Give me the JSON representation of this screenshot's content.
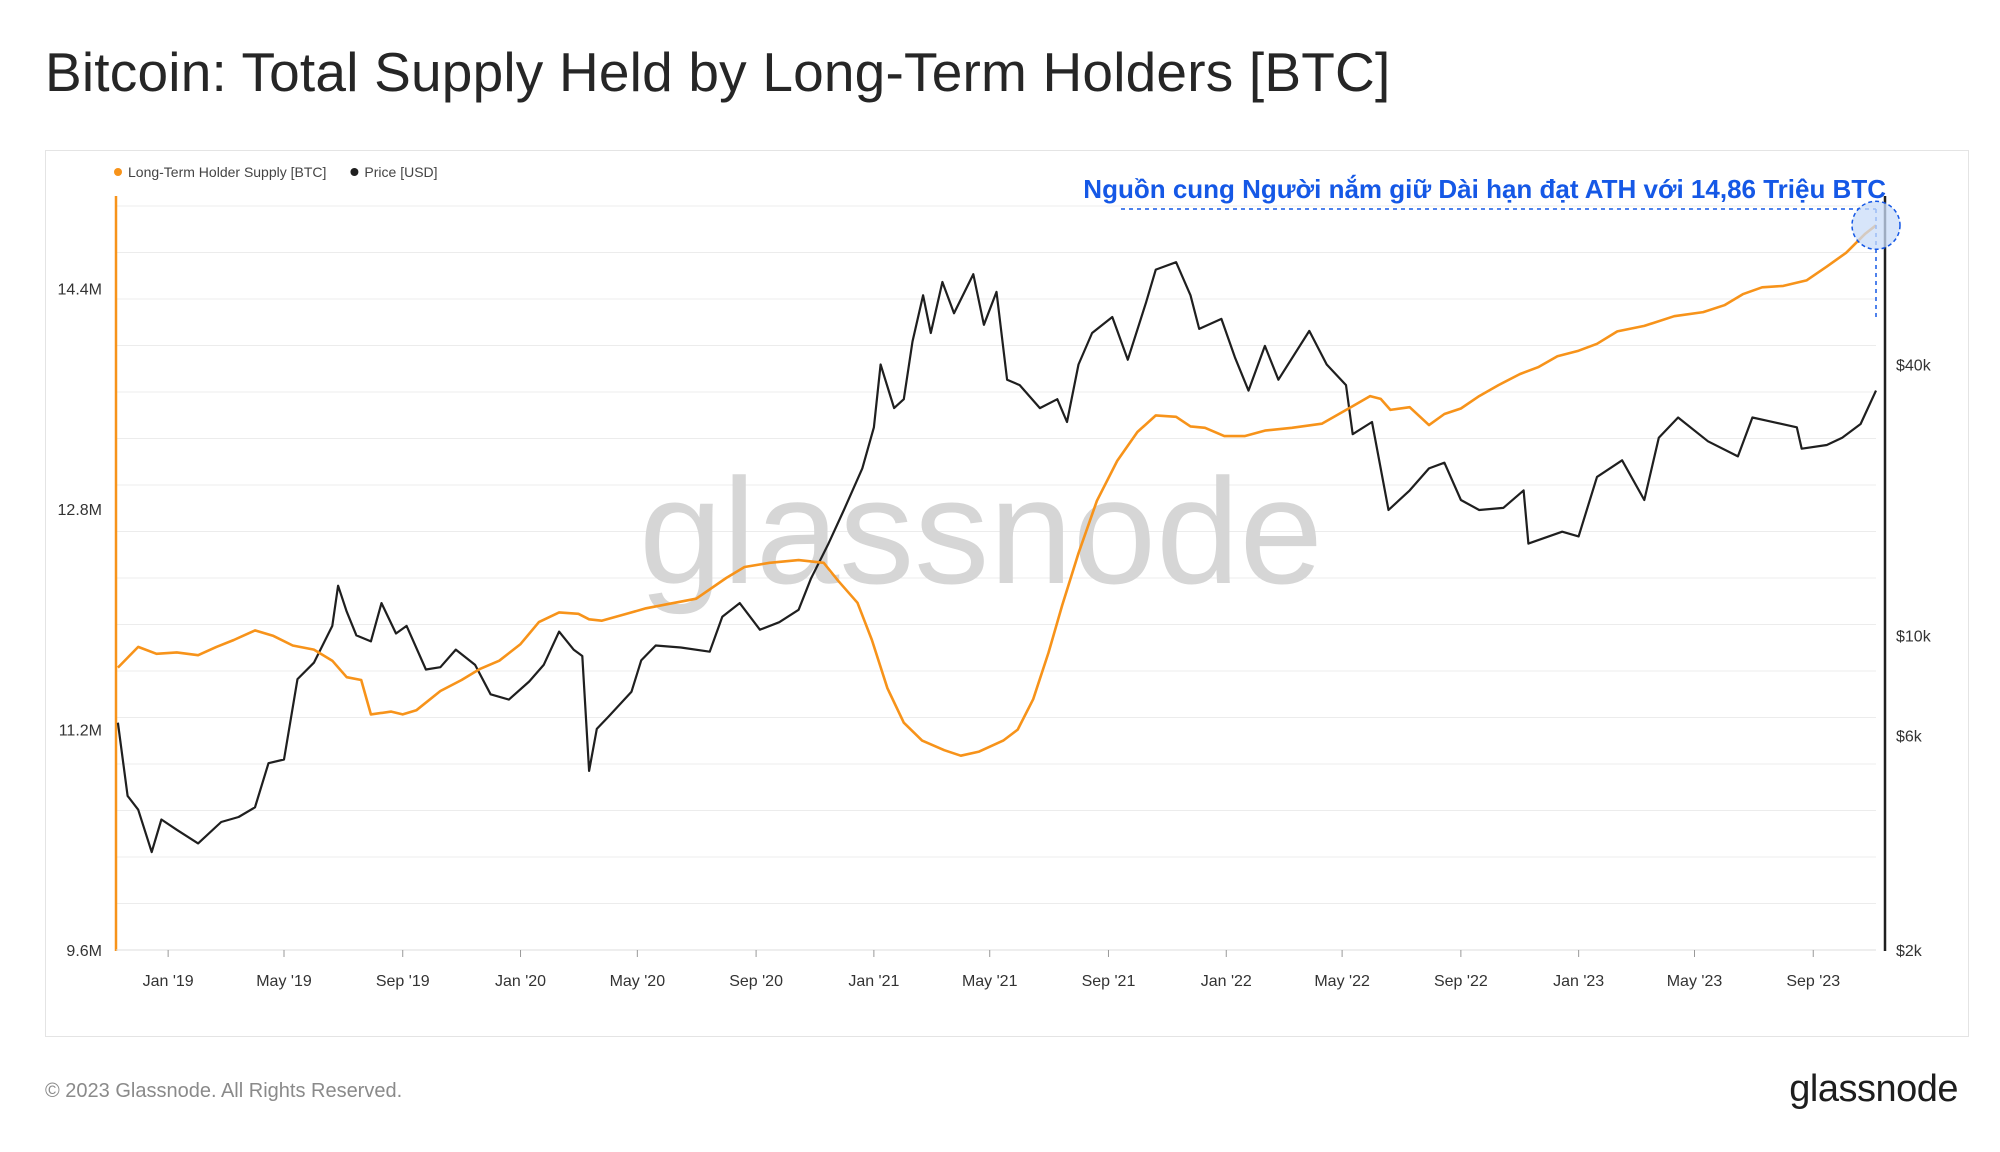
{
  "title": "Bitcoin: Total Supply Held by Long-Term Holders [BTC]",
  "footer": {
    "copyright": "© 2023 Glassnode. All Rights Reserved.",
    "logo_text": "glassnode"
  },
  "watermark": "glassnode",
  "annotation": {
    "text": "Nguồn cung Người nắm giữ Dài hạn đạt ATH với 14,86 Triệu BTC",
    "color": "#1558e6"
  },
  "chart_data": {
    "type": "line",
    "title": "Bitcoin: Total Supply Held by Long-Term Holders [BTC]",
    "legend_position": "top-left",
    "grid": true,
    "x_range": [
      "2018-11-08",
      "2023-11-05"
    ],
    "x_ticks": [
      {
        "date": "2019-01-01",
        "label": "Jan '19"
      },
      {
        "date": "2019-05-01",
        "label": "May '19"
      },
      {
        "date": "2019-09-01",
        "label": "Sep '19"
      },
      {
        "date": "2020-01-01",
        "label": "Jan '20"
      },
      {
        "date": "2020-05-01",
        "label": "May '20"
      },
      {
        "date": "2020-09-01",
        "label": "Sep '20"
      },
      {
        "date": "2021-01-01",
        "label": "Jan '21"
      },
      {
        "date": "2021-05-01",
        "label": "May '21"
      },
      {
        "date": "2021-09-01",
        "label": "Sep '21"
      },
      {
        "date": "2022-01-01",
        "label": "Jan '22"
      },
      {
        "date": "2022-05-01",
        "label": "May '22"
      },
      {
        "date": "2022-09-01",
        "label": "Sep '22"
      },
      {
        "date": "2023-01-01",
        "label": "Jan '23"
      },
      {
        "date": "2023-05-01",
        "label": "May '23"
      },
      {
        "date": "2023-09-01",
        "label": "Sep '23"
      }
    ],
    "y_left": {
      "scale": "linear",
      "range": [
        9600000,
        15000000
      ],
      "ticks": [
        {
          "value": 9600000,
          "label": "9.6M"
        },
        {
          "value": 11200000,
          "label": "11.2M"
        },
        {
          "value": 12800000,
          "label": "12.8M"
        },
        {
          "value": 14400000,
          "label": "14.4M"
        }
      ]
    },
    "y_right": {
      "scale": "log",
      "range": [
        2000,
        90000
      ],
      "ticks": [
        {
          "value": 2000,
          "label": "$2k"
        },
        {
          "value": 6000,
          "label": "$6k"
        },
        {
          "value": 10000,
          "label": "$10k"
        },
        {
          "value": 40000,
          "label": "$40k"
        }
      ]
    },
    "series": [
      {
        "name": "Long-Term Holder Supply [BTC]",
        "axis": "left",
        "color": "#f7931a",
        "points": [
          [
            "2018-11-10",
            11650000
          ],
          [
            "2018-12-01",
            11800000
          ],
          [
            "2018-12-20",
            11750000
          ],
          [
            "2019-01-10",
            11760000
          ],
          [
            "2019-02-01",
            11740000
          ],
          [
            "2019-02-20",
            11800000
          ],
          [
            "2019-03-10",
            11850000
          ],
          [
            "2019-04-01",
            11920000
          ],
          [
            "2019-04-20",
            11880000
          ],
          [
            "2019-05-10",
            11810000
          ],
          [
            "2019-06-01",
            11780000
          ],
          [
            "2019-06-20",
            11700000
          ],
          [
            "2019-07-05",
            11580000
          ],
          [
            "2019-07-20",
            11560000
          ],
          [
            "2019-07-30",
            11310000
          ],
          [
            "2019-08-20",
            11330000
          ],
          [
            "2019-09-01",
            11310000
          ],
          [
            "2019-09-15",
            11340000
          ],
          [
            "2019-10-10",
            11480000
          ],
          [
            "2019-11-01",
            11560000
          ],
          [
            "2019-11-20",
            11640000
          ],
          [
            "2019-12-10",
            11700000
          ],
          [
            "2020-01-01",
            11820000
          ],
          [
            "2020-01-20",
            11980000
          ],
          [
            "2020-02-10",
            12050000
          ],
          [
            "2020-03-01",
            12040000
          ],
          [
            "2020-03-12",
            12000000
          ],
          [
            "2020-03-25",
            11990000
          ],
          [
            "2020-04-20",
            12040000
          ],
          [
            "2020-05-10",
            12080000
          ],
          [
            "2020-06-01",
            12110000
          ],
          [
            "2020-07-01",
            12150000
          ],
          [
            "2020-08-01",
            12300000
          ],
          [
            "2020-08-20",
            12380000
          ],
          [
            "2020-09-15",
            12410000
          ],
          [
            "2020-10-15",
            12430000
          ],
          [
            "2020-11-10",
            12410000
          ],
          [
            "2020-11-25",
            12280000
          ],
          [
            "2020-12-15",
            12120000
          ],
          [
            "2020-12-30",
            11850000
          ],
          [
            "2021-01-15",
            11500000
          ],
          [
            "2021-02-01",
            11250000
          ],
          [
            "2021-02-20",
            11120000
          ],
          [
            "2021-03-15",
            11050000
          ],
          [
            "2021-04-01",
            11010000
          ],
          [
            "2021-04-20",
            11040000
          ],
          [
            "2021-05-15",
            11120000
          ],
          [
            "2021-05-30",
            11200000
          ],
          [
            "2021-06-15",
            11420000
          ],
          [
            "2021-07-01",
            11760000
          ],
          [
            "2021-07-15",
            12100000
          ],
          [
            "2021-08-01",
            12480000
          ],
          [
            "2021-08-20",
            12860000
          ],
          [
            "2021-09-10",
            13150000
          ],
          [
            "2021-10-01",
            13360000
          ],
          [
            "2021-10-20",
            13480000
          ],
          [
            "2021-11-10",
            13470000
          ],
          [
            "2021-11-25",
            13400000
          ],
          [
            "2021-12-10",
            13390000
          ],
          [
            "2021-12-30",
            13330000
          ],
          [
            "2022-01-20",
            13330000
          ],
          [
            "2022-02-10",
            13370000
          ],
          [
            "2022-03-10",
            13390000
          ],
          [
            "2022-04-10",
            13420000
          ],
          [
            "2022-05-10",
            13540000
          ],
          [
            "2022-05-30",
            13620000
          ],
          [
            "2022-06-10",
            13600000
          ],
          [
            "2022-06-20",
            13520000
          ],
          [
            "2022-07-10",
            13540000
          ],
          [
            "2022-07-30",
            13410000
          ],
          [
            "2022-08-15",
            13490000
          ],
          [
            "2022-09-01",
            13530000
          ],
          [
            "2022-09-20",
            13620000
          ],
          [
            "2022-10-10",
            13700000
          ],
          [
            "2022-11-01",
            13780000
          ],
          [
            "2022-11-20",
            13830000
          ],
          [
            "2022-12-10",
            13910000
          ],
          [
            "2023-01-01",
            13950000
          ],
          [
            "2023-01-20",
            14000000
          ],
          [
            "2023-02-10",
            14090000
          ],
          [
            "2023-03-10",
            14130000
          ],
          [
            "2023-04-10",
            14200000
          ],
          [
            "2023-05-10",
            14230000
          ],
          [
            "2023-06-01",
            14280000
          ],
          [
            "2023-06-20",
            14360000
          ],
          [
            "2023-07-10",
            14410000
          ],
          [
            "2023-08-01",
            14420000
          ],
          [
            "2023-08-25",
            14460000
          ],
          [
            "2023-09-15",
            14560000
          ],
          [
            "2023-10-05",
            14660000
          ],
          [
            "2023-10-25",
            14800000
          ],
          [
            "2023-11-05",
            14860000
          ]
        ]
      },
      {
        "name": "Price [USD]",
        "axis": "right",
        "color": "#1f1f1f",
        "points": [
          [
            "2018-11-10",
            6400
          ],
          [
            "2018-11-20",
            4400
          ],
          [
            "2018-12-01",
            4100
          ],
          [
            "2018-12-15",
            3300
          ],
          [
            "2018-12-25",
            3900
          ],
          [
            "2019-01-10",
            3700
          ],
          [
            "2019-02-01",
            3450
          ],
          [
            "2019-02-25",
            3850
          ],
          [
            "2019-03-15",
            3950
          ],
          [
            "2019-04-01",
            4150
          ],
          [
            "2019-04-15",
            5200
          ],
          [
            "2019-05-01",
            5300
          ],
          [
            "2019-05-15",
            8000
          ],
          [
            "2019-06-01",
            8700
          ],
          [
            "2019-06-20",
            10500
          ],
          [
            "2019-06-26",
            12900
          ],
          [
            "2019-07-05",
            11300
          ],
          [
            "2019-07-15",
            10000
          ],
          [
            "2019-07-30",
            9700
          ],
          [
            "2019-08-10",
            11800
          ],
          [
            "2019-08-25",
            10100
          ],
          [
            "2019-09-05",
            10500
          ],
          [
            "2019-09-25",
            8400
          ],
          [
            "2019-10-10",
            8500
          ],
          [
            "2019-10-26",
            9300
          ],
          [
            "2019-11-15",
            8600
          ],
          [
            "2019-12-01",
            7400
          ],
          [
            "2019-12-20",
            7200
          ],
          [
            "2020-01-10",
            7900
          ],
          [
            "2020-01-25",
            8600
          ],
          [
            "2020-02-10",
            10200
          ],
          [
            "2020-02-25",
            9300
          ],
          [
            "2020-03-05",
            9000
          ],
          [
            "2020-03-12",
            5000
          ],
          [
            "2020-03-20",
            6200
          ],
          [
            "2020-04-01",
            6600
          ],
          [
            "2020-04-25",
            7500
          ],
          [
            "2020-05-05",
            8800
          ],
          [
            "2020-05-20",
            9500
          ],
          [
            "2020-06-15",
            9400
          ],
          [
            "2020-07-15",
            9200
          ],
          [
            "2020-07-28",
            11000
          ],
          [
            "2020-08-15",
            11800
          ],
          [
            "2020-09-05",
            10300
          ],
          [
            "2020-09-25",
            10700
          ],
          [
            "2020-10-15",
            11400
          ],
          [
            "2020-10-28",
            13400
          ],
          [
            "2020-11-15",
            16000
          ],
          [
            "2020-12-01",
            19000
          ],
          [
            "2020-12-20",
            23500
          ],
          [
            "2021-01-01",
            29000
          ],
          [
            "2021-01-08",
            40000
          ],
          [
            "2021-01-22",
            32000
          ],
          [
            "2021-02-01",
            33500
          ],
          [
            "2021-02-10",
            45000
          ],
          [
            "2021-02-21",
            57000
          ],
          [
            "2021-03-01",
            47000
          ],
          [
            "2021-03-13",
            61000
          ],
          [
            "2021-03-25",
            52000
          ],
          [
            "2021-04-14",
            63500
          ],
          [
            "2021-04-25",
            49000
          ],
          [
            "2021-05-08",
            58000
          ],
          [
            "2021-05-19",
            37000
          ],
          [
            "2021-06-01",
            36000
          ],
          [
            "2021-06-22",
            32000
          ],
          [
            "2021-07-10",
            33500
          ],
          [
            "2021-07-20",
            29800
          ],
          [
            "2021-08-01",
            40000
          ],
          [
            "2021-08-15",
            47000
          ],
          [
            "2021-09-05",
            51000
          ],
          [
            "2021-09-21",
            41000
          ],
          [
            "2021-10-10",
            55000
          ],
          [
            "2021-10-20",
            65000
          ],
          [
            "2021-11-10",
            67500
          ],
          [
            "2021-11-25",
            57000
          ],
          [
            "2021-12-04",
            48000
          ],
          [
            "2021-12-27",
            50500
          ],
          [
            "2022-01-10",
            41500
          ],
          [
            "2022-01-24",
            35000
          ],
          [
            "2022-02-10",
            44000
          ],
          [
            "2022-02-24",
            37000
          ],
          [
            "2022-03-28",
            47500
          ],
          [
            "2022-04-15",
            40000
          ],
          [
            "2022-05-05",
            36000
          ],
          [
            "2022-05-12",
            28000
          ],
          [
            "2022-06-01",
            29800
          ],
          [
            "2022-06-18",
            19000
          ],
          [
            "2022-07-10",
            21000
          ],
          [
            "2022-07-30",
            23500
          ],
          [
            "2022-08-15",
            24200
          ],
          [
            "2022-09-01",
            20000
          ],
          [
            "2022-09-20",
            19000
          ],
          [
            "2022-10-15",
            19200
          ],
          [
            "2022-11-05",
            21000
          ],
          [
            "2022-11-10",
            16000
          ],
          [
            "2022-12-15",
            17000
          ],
          [
            "2023-01-01",
            16600
          ],
          [
            "2023-01-20",
            22500
          ],
          [
            "2023-02-15",
            24500
          ],
          [
            "2023-03-10",
            20000
          ],
          [
            "2023-03-25",
            27500
          ],
          [
            "2023-04-14",
            30500
          ],
          [
            "2023-05-15",
            27000
          ],
          [
            "2023-06-15",
            25000
          ],
          [
            "2023-06-30",
            30500
          ],
          [
            "2023-07-15",
            30000
          ],
          [
            "2023-08-15",
            29000
          ],
          [
            "2023-08-20",
            26000
          ],
          [
            "2023-09-15",
            26500
          ],
          [
            "2023-10-01",
            27500
          ],
          [
            "2023-10-20",
            29500
          ],
          [
            "2023-11-05",
            35000
          ]
        ]
      }
    ]
  }
}
